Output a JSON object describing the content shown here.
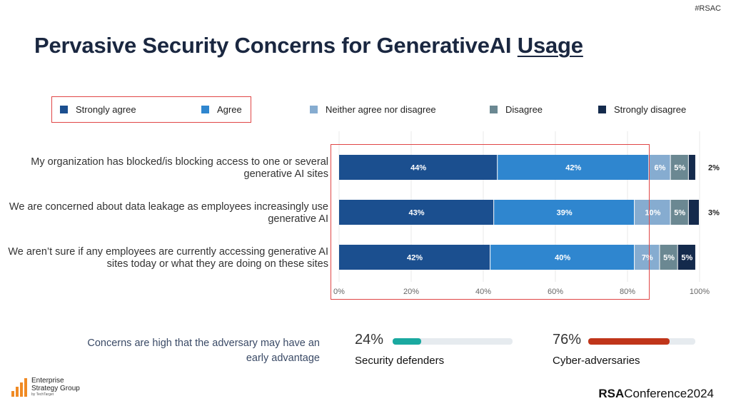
{
  "header": {
    "tag": "#RSAC",
    "title_main": "Pervasive Security Concerns for GenerativeAI",
    "title_underlined": "Usage"
  },
  "legend": [
    {
      "label": "Strongly agree",
      "color": "#1b4f8f"
    },
    {
      "label": "Agree",
      "color": "#2f86cf"
    },
    {
      "label": "Neither agree nor disagree",
      "color": "#86acd0"
    },
    {
      "label": "Disagree",
      "color": "#6b8892"
    },
    {
      "label": "Strongly disagree",
      "color": "#142a4c"
    }
  ],
  "chart_data": {
    "type": "bar",
    "orientation": "horizontal",
    "stacked": true,
    "categories": [
      "My organization has blocked/is blocking access to one or several generative AI sites",
      "We are concerned about data leakage as employees increasingly use generative AI",
      "We aren't sure if any employees are currently accessing generative AI sites today or what they are doing on these sites"
    ],
    "series": [
      {
        "name": "Strongly agree",
        "values": [
          44,
          43,
          42
        ]
      },
      {
        "name": "Agree",
        "values": [
          42,
          39,
          40
        ]
      },
      {
        "name": "Neither agree nor disagree",
        "values": [
          6,
          10,
          7
        ]
      },
      {
        "name": "Disagree",
        "values": [
          5,
          5,
          5
        ]
      },
      {
        "name": "Strongly disagree",
        "values": [
          2,
          3,
          5
        ]
      }
    ],
    "labels": [
      [
        "44%",
        "42%",
        "6%",
        "5%",
        "2%"
      ],
      [
        "43%",
        "39%",
        "10%",
        "5%",
        "3%"
      ],
      [
        "42%",
        "40%",
        "7%",
        "5%",
        "5%"
      ]
    ],
    "xlim": [
      0,
      100
    ],
    "xticks": [
      "0%",
      "20%",
      "40%",
      "60%",
      "80%",
      "100%"
    ],
    "xlabel": "",
    "ylabel": ""
  },
  "categories_display": {
    "cat1": [
      "My organization has blocked/is blocking access to one or several",
      "generative AI sites"
    ],
    "cat2": [
      "We are concerned about data leakage as employees increasingly use",
      "generative AI"
    ],
    "cat3": [
      "We aren’t sure if any employees are currently accessing generative AI",
      "sites today or what they are doing on these sites"
    ]
  },
  "footer": {
    "note_line1": "Concerns are high that the adversary may have an",
    "note_line2": "early advantage",
    "defenders": {
      "pct": "24%",
      "value": 24,
      "label": "Security defenders",
      "color": "#1aa9a0"
    },
    "adversaries": {
      "pct": "76%",
      "value": 76,
      "label": "Cyber-adversaries",
      "color": "#c0351a"
    },
    "esg_line1": "Enterprise",
    "esg_line2": "Strategy Group",
    "esg_line3": "by TechTarget",
    "rsa_bold": "RSA",
    "rsa_rest": "Conference",
    "rsa_year": "2024"
  }
}
